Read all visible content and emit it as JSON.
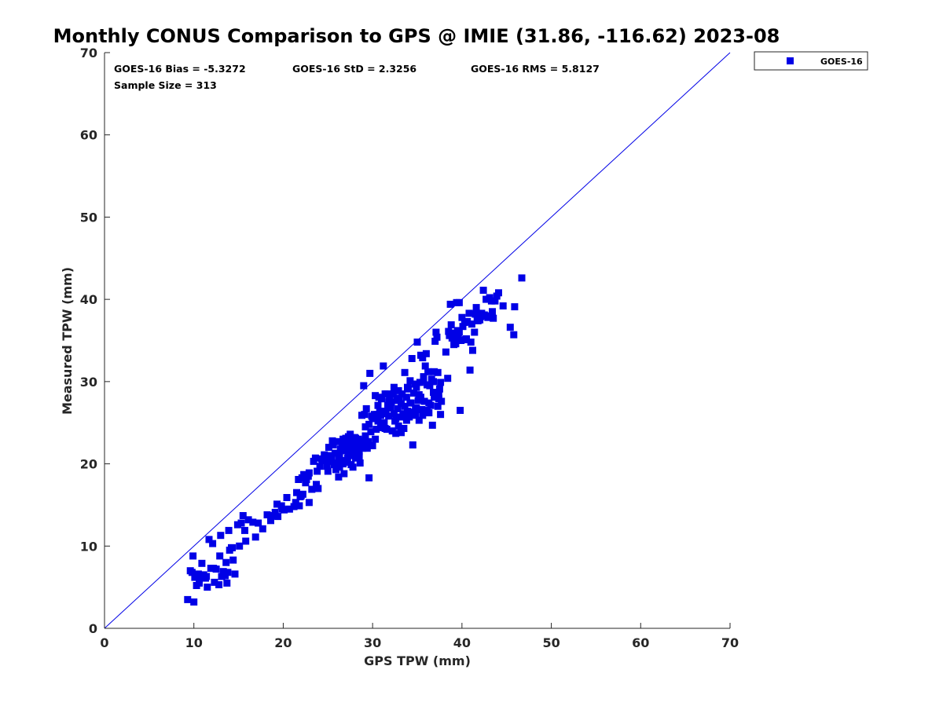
{
  "chart_data": {
    "type": "scatter",
    "title": "Monthly CONUS Comparison to GPS @ IMIE (31.86, -116.62) 2023-08",
    "xlabel": "GPS TPW (mm)",
    "ylabel": "Measured TPW (mm)",
    "xlim": [
      0,
      70
    ],
    "ylim": [
      0,
      70
    ],
    "xticks": [
      "0",
      "10",
      "20",
      "30",
      "40",
      "50",
      "60",
      "70"
    ],
    "yticks": [
      "0",
      "10",
      "20",
      "30",
      "40",
      "50",
      "60",
      "70"
    ],
    "grid": false,
    "legend_position": "outside-top-right",
    "reference_line": "one-to-one",
    "stats": {
      "bias": "GOES-16 Bias = -5.3272",
      "std": "GOES-16 StD = 2.3256",
      "rms": "GOES-16 RMS = 5.8127",
      "sample": "Sample Size = 313"
    },
    "series": [
      {
        "name": "GOES-16",
        "color": "#0000e6",
        "marker": "square",
        "points": [
          [
            9.3,
            3.5
          ],
          [
            10.0,
            3.2
          ],
          [
            9.6,
            7.0
          ],
          [
            9.8,
            6.8
          ],
          [
            9.9,
            8.8
          ],
          [
            10.1,
            6.2
          ],
          [
            10.3,
            5.2
          ],
          [
            10.5,
            6.6
          ],
          [
            10.6,
            6.3
          ],
          [
            10.9,
            7.9
          ],
          [
            11.1,
            6.5
          ],
          [
            11.4,
            6.3
          ],
          [
            11.5,
            5.0
          ],
          [
            11.7,
            10.8
          ],
          [
            11.9,
            7.3
          ],
          [
            12.2,
            7.3
          ],
          [
            12.3,
            5.6
          ],
          [
            12.8,
            5.3
          ],
          [
            12.9,
            8.8
          ],
          [
            13.0,
            11.3
          ],
          [
            13.3,
            6.9
          ],
          [
            13.5,
            6.4
          ],
          [
            13.6,
            8.0
          ],
          [
            13.7,
            5.5
          ],
          [
            13.9,
            11.9
          ],
          [
            14.0,
            9.5
          ],
          [
            14.3,
            9.8
          ],
          [
            14.4,
            8.3
          ],
          [
            14.6,
            6.6
          ],
          [
            14.9,
            12.6
          ],
          [
            15.1,
            10.0
          ],
          [
            15.3,
            12.8
          ],
          [
            15.5,
            13.7
          ],
          [
            15.8,
            10.6
          ],
          [
            16.1,
            13.2
          ],
          [
            16.9,
            11.1
          ],
          [
            17.2,
            12.8
          ],
          [
            18.2,
            13.8
          ],
          [
            18.6,
            13.1
          ],
          [
            19.1,
            14.1
          ],
          [
            19.3,
            15.1
          ],
          [
            19.4,
            13.6
          ],
          [
            19.9,
            14.5
          ],
          [
            20.4,
            15.9
          ],
          [
            20.7,
            14.5
          ],
          [
            21.2,
            14.8
          ],
          [
            21.5,
            16.5
          ],
          [
            21.7,
            18.1
          ],
          [
            21.8,
            14.9
          ],
          [
            22.0,
            16.1
          ],
          [
            22.1,
            18.3
          ],
          [
            22.2,
            16.3
          ],
          [
            22.3,
            18.7
          ],
          [
            22.6,
            18.1
          ],
          [
            22.8,
            18.5
          ],
          [
            22.9,
            15.3
          ],
          [
            23.2,
            16.9
          ],
          [
            23.4,
            20.3
          ],
          [
            23.6,
            20.7
          ],
          [
            23.7,
            17.5
          ],
          [
            23.9,
            17.0
          ],
          [
            24.3,
            20.6
          ],
          [
            24.8,
            20.4
          ],
          [
            24.9,
            19.7
          ],
          [
            25.0,
            19.1
          ],
          [
            25.2,
            21.0
          ],
          [
            25.4,
            20.6
          ],
          [
            25.5,
            22.8
          ],
          [
            25.7,
            19.9
          ],
          [
            25.8,
            21.3
          ],
          [
            26.0,
            20.1
          ],
          [
            26.1,
            22.7
          ],
          [
            26.2,
            18.4
          ],
          [
            26.3,
            19.6
          ],
          [
            26.4,
            21.8
          ],
          [
            26.5,
            20.4
          ],
          [
            26.6,
            22.4
          ],
          [
            26.7,
            23.0
          ],
          [
            26.8,
            18.8
          ],
          [
            26.9,
            21.6
          ],
          [
            27.0,
            23.1
          ],
          [
            27.1,
            20.2
          ],
          [
            27.2,
            22.2
          ],
          [
            27.3,
            23.3
          ],
          [
            27.4,
            21.0
          ],
          [
            27.5,
            22.6
          ],
          [
            27.6,
            19.9
          ],
          [
            27.7,
            22.9
          ],
          [
            27.8,
            21.3
          ],
          [
            27.9,
            22.0
          ],
          [
            28.0,
            23.2
          ],
          [
            28.1,
            20.7
          ],
          [
            28.2,
            22.5
          ],
          [
            28.3,
            21.8
          ],
          [
            28.4,
            23.0
          ],
          [
            28.5,
            21.5
          ],
          [
            28.6,
            22.8
          ],
          [
            28.7,
            22.2
          ],
          [
            28.8,
            25.9
          ],
          [
            28.9,
            21.9
          ],
          [
            29.0,
            29.5
          ],
          [
            29.1,
            26.0
          ],
          [
            29.2,
            24.5
          ],
          [
            29.3,
            26.7
          ],
          [
            29.5,
            22.7
          ],
          [
            29.6,
            18.3
          ],
          [
            29.7,
            31.0
          ],
          [
            29.8,
            23.9
          ],
          [
            29.9,
            25.8
          ],
          [
            30.0,
            22.2
          ],
          [
            30.2,
            26.0
          ],
          [
            30.3,
            28.3
          ],
          [
            30.4,
            24.2
          ],
          [
            30.5,
            26.0
          ],
          [
            30.6,
            25.2
          ],
          [
            30.7,
            28.1
          ],
          [
            30.8,
            26.4
          ],
          [
            30.9,
            24.4
          ],
          [
            31.0,
            27.9
          ],
          [
            31.1,
            26.1
          ],
          [
            31.2,
            31.9
          ],
          [
            31.3,
            25.0
          ],
          [
            31.4,
            28.5
          ],
          [
            31.5,
            26.4
          ],
          [
            31.6,
            24.2
          ],
          [
            31.7,
            27.1
          ],
          [
            31.8,
            25.8
          ],
          [
            31.9,
            28.3
          ],
          [
            32.0,
            26.8
          ],
          [
            32.1,
            27.5
          ],
          [
            32.2,
            24.0
          ],
          [
            32.3,
            28.5
          ],
          [
            32.4,
            26.1
          ],
          [
            32.5,
            25.2
          ],
          [
            32.6,
            23.7
          ],
          [
            32.7,
            27.7
          ],
          [
            32.8,
            26.7
          ],
          [
            32.9,
            24.6
          ],
          [
            33.0,
            28.0
          ],
          [
            33.1,
            25.7
          ],
          [
            33.2,
            27.3
          ],
          [
            33.3,
            28.5
          ],
          [
            33.4,
            26.1
          ],
          [
            33.5,
            24.3
          ],
          [
            33.6,
            27.0
          ],
          [
            33.7,
            25.7
          ],
          [
            33.8,
            28.1
          ],
          [
            33.9,
            26.4
          ],
          [
            34.0,
            29.1
          ],
          [
            34.1,
            25.7
          ],
          [
            34.2,
            30.1
          ],
          [
            34.3,
            27.4
          ],
          [
            34.4,
            32.8
          ],
          [
            34.5,
            22.3
          ],
          [
            34.6,
            28.6
          ],
          [
            34.7,
            29.7
          ],
          [
            34.8,
            26.6
          ],
          [
            34.9,
            29.3
          ],
          [
            35.0,
            34.8
          ],
          [
            35.1,
            27.7
          ],
          [
            35.2,
            25.3
          ],
          [
            35.3,
            29.9
          ],
          [
            35.4,
            28.1
          ],
          [
            35.5,
            26.6
          ],
          [
            35.6,
            32.9
          ],
          [
            35.7,
            30.1
          ],
          [
            35.8,
            27.6
          ],
          [
            35.9,
            31.9
          ],
          [
            36.0,
            33.4
          ],
          [
            36.1,
            29.6
          ],
          [
            36.2,
            31.2
          ],
          [
            36.3,
            26.2
          ],
          [
            36.4,
            29.5
          ],
          [
            36.5,
            27.1
          ],
          [
            36.6,
            30.3
          ],
          [
            36.7,
            24.7
          ],
          [
            36.8,
            28.7
          ],
          [
            36.9,
            31.2
          ],
          [
            37.0,
            34.9
          ],
          [
            37.1,
            36.0
          ],
          [
            37.2,
            35.4
          ],
          [
            37.3,
            27.0
          ],
          [
            37.4,
            28.4
          ],
          [
            37.5,
            29.1
          ],
          [
            37.6,
            26.0
          ],
          [
            37.7,
            27.6
          ],
          [
            38.2,
            33.6
          ],
          [
            38.4,
            30.4
          ],
          [
            38.6,
            35.6
          ],
          [
            38.7,
            39.4
          ],
          [
            38.8,
            36.9
          ],
          [
            39.0,
            35.9
          ],
          [
            39.1,
            34.5
          ],
          [
            39.2,
            35.1
          ],
          [
            39.3,
            34.6
          ],
          [
            39.4,
            39.6
          ],
          [
            39.5,
            36.2
          ],
          [
            39.6,
            35.3
          ],
          [
            39.7,
            39.6
          ],
          [
            39.8,
            26.5
          ],
          [
            39.9,
            35.0
          ],
          [
            40.0,
            37.8
          ],
          [
            40.1,
            36.7
          ],
          [
            40.3,
            37.2
          ],
          [
            40.5,
            35.2
          ],
          [
            40.6,
            37.3
          ],
          [
            40.8,
            38.3
          ],
          [
            40.9,
            31.4
          ],
          [
            41.0,
            34.8
          ],
          [
            41.2,
            33.8
          ],
          [
            41.4,
            36.0
          ],
          [
            41.5,
            38.2
          ],
          [
            41.6,
            39.0
          ],
          [
            41.7,
            37.5
          ],
          [
            41.8,
            37.4
          ],
          [
            42.0,
            37.5
          ],
          [
            42.2,
            38.3
          ],
          [
            42.4,
            41.1
          ],
          [
            42.5,
            38.1
          ],
          [
            42.7,
            40.0
          ],
          [
            42.9,
            37.8
          ],
          [
            43.1,
            40.2
          ],
          [
            43.3,
            39.8
          ],
          [
            43.5,
            37.7
          ],
          [
            43.7,
            39.8
          ],
          [
            43.9,
            40.4
          ],
          [
            44.1,
            40.8
          ],
          [
            44.6,
            39.2
          ],
          [
            45.4,
            36.6
          ],
          [
            45.8,
            35.7
          ],
          [
            45.9,
            39.1
          ],
          [
            46.7,
            42.6
          ],
          [
            27.2,
            20.7
          ],
          [
            27.6,
            21.9
          ],
          [
            28.1,
            23.1
          ],
          [
            26.9,
            22.3
          ],
          [
            26.3,
            21.0
          ],
          [
            25.9,
            19.3
          ],
          [
            28.5,
            20.9
          ],
          [
            27.8,
            19.6
          ],
          [
            30.0,
            25.5
          ],
          [
            31.8,
            27.6
          ],
          [
            33.9,
            29.3
          ],
          [
            34.6,
            26.3
          ],
          [
            35.2,
            28.4
          ],
          [
            36.8,
            30.0
          ],
          [
            37.3,
            31.1
          ],
          [
            38.9,
            35.3
          ],
          [
            40.4,
            35.1
          ],
          [
            42.1,
            37.9
          ],
          [
            24.1,
            19.7
          ],
          [
            25.3,
            20.3
          ],
          [
            26.5,
            21.6
          ],
          [
            28.8,
            22.7
          ],
          [
            29.2,
            23.4
          ],
          [
            30.9,
            25.9
          ],
          [
            32.6,
            25.5
          ],
          [
            33.8,
            25.3
          ],
          [
            34.9,
            26.8
          ],
          [
            35.6,
            25.9
          ],
          [
            36.3,
            27.4
          ],
          [
            37.6,
            29.9
          ],
          [
            21.9,
            16.0
          ],
          [
            22.5,
            17.7
          ],
          [
            23.8,
            19.1
          ],
          [
            20.1,
            14.4
          ],
          [
            18.9,
            13.7
          ],
          [
            16.6,
            12.9
          ],
          [
            14.2,
            9.8
          ],
          [
            12.5,
            7.2
          ],
          [
            11.3,
            6.1
          ],
          [
            10.6,
            5.5
          ],
          [
            13.1,
            6.3
          ],
          [
            13.8,
            6.8
          ],
          [
            27.5,
            23.6
          ],
          [
            26.2,
            20.9
          ],
          [
            29.6,
            24.8
          ],
          [
            31.4,
            24.3
          ],
          [
            32.9,
            28.9
          ],
          [
            34.2,
            27.4
          ],
          [
            35.7,
            30.6
          ],
          [
            36.9,
            28.1
          ],
          [
            38.5,
            36.1
          ],
          [
            39.7,
            36.0
          ],
          [
            41.1,
            37.0
          ],
          [
            42.8,
            38.0
          ],
          [
            43.4,
            38.5
          ],
          [
            24.6,
            21.1
          ],
          [
            25.6,
            22.3
          ],
          [
            27.9,
            22.6
          ],
          [
            28.2,
            21.4
          ],
          [
            30.6,
            27.1
          ],
          [
            33.2,
            23.8
          ],
          [
            34.8,
            25.9
          ],
          [
            36.1,
            26.5
          ],
          [
            37.4,
            27.9
          ],
          [
            22.9,
            18.9
          ],
          [
            21.4,
            15.3
          ],
          [
            19.8,
            14.9
          ],
          [
            17.7,
            12.1
          ],
          [
            15.7,
            11.9
          ],
          [
            12.1,
            10.3
          ],
          [
            29.4,
            21.9
          ],
          [
            28.6,
            20.1
          ],
          [
            31.6,
            28.5
          ],
          [
            32.4,
            29.3
          ],
          [
            33.6,
            31.1
          ],
          [
            35.4,
            33.2
          ],
          [
            30.3,
            23.0
          ],
          [
            26.7,
            20.0
          ],
          [
            25.1,
            22.0
          ],
          [
            24.4,
            20.4
          ],
          [
            27.3,
            21.1
          ]
        ]
      }
    ]
  }
}
